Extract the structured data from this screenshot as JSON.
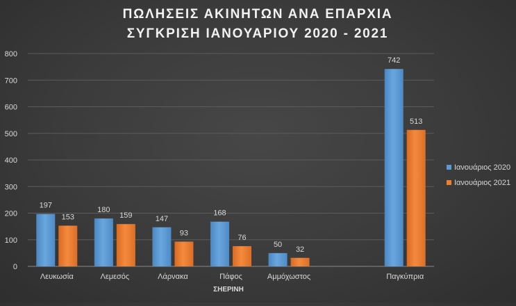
{
  "chart_data": {
    "type": "bar",
    "title_lines": [
      "ΠΩΛΗΣΕΙΣ ΑΚΙΝΗΤΩΝ ΑΝΑ ΕΠΑΡΧΙΑ",
      "ΣΥΓΚΡΙΣΗ ΙΑΝΟΥΑΡΙΟΥ 2020 - 2021"
    ],
    "xlabel": "ΣΗΕΡΙΝΗ",
    "ylabel": "",
    "ylim": [
      0,
      800
    ],
    "yticks": [
      0,
      100,
      200,
      300,
      400,
      500,
      600,
      700,
      800
    ],
    "grid": true,
    "legend_position": "right",
    "categories": [
      "Λευκωσία",
      "Λεμεσός",
      "Λάρνακα",
      "Πάφος",
      "Αμμόχωστος",
      "",
      "Παγκύπρια"
    ],
    "series": [
      {
        "name": "Ιανουάριος 2020",
        "color": "#5b9bd5",
        "values": [
          197,
          180,
          147,
          168,
          50,
          null,
          742
        ]
      },
      {
        "name": "Ιανουάριος 2021",
        "color": "#ed7d31",
        "values": [
          153,
          159,
          93,
          76,
          32,
          null,
          513
        ]
      }
    ]
  }
}
